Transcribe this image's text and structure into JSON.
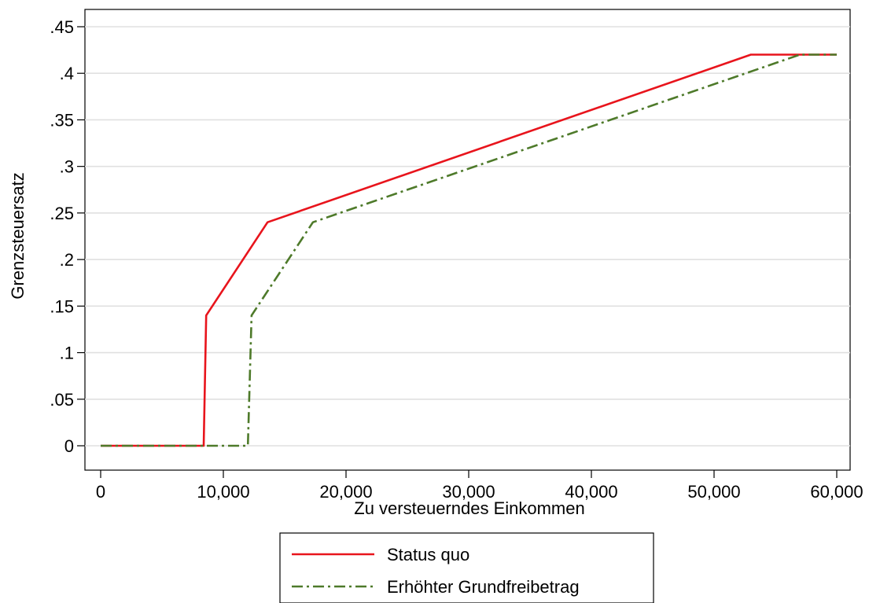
{
  "chart_data": {
    "type": "line",
    "title": "",
    "xlabel": "Zu versteuerndes Einkommen",
    "ylabel": "Grenzsteuersatz",
    "xlim": [
      0,
      60000
    ],
    "ylim": [
      0,
      0.45
    ],
    "x_ticks": [
      0,
      10000,
      20000,
      30000,
      40000,
      50000,
      60000
    ],
    "x_tick_labels": [
      "0",
      "10,000",
      "20,000",
      "30,000",
      "40,000",
      "50,000",
      "60,000"
    ],
    "y_ticks": [
      0,
      0.05,
      0.1,
      0.15,
      0.2,
      0.25,
      0.3,
      0.35,
      0.4,
      0.45
    ],
    "y_tick_labels": [
      "0",
      ".05",
      ".1",
      ".15",
      ".2",
      ".25",
      ".3",
      ".35",
      ".4",
      ".45"
    ],
    "grid": "horizontal",
    "legend_placement": "bottom",
    "series": [
      {
        "name": "Status quo",
        "color": "#e8141c",
        "style": "solid",
        "x": [
          0,
          8400,
          8600,
          13600,
          53000,
          60000
        ],
        "y": [
          0,
          0,
          0.14,
          0.24,
          0.42,
          0.42
        ]
      },
      {
        "name": "Erhöhter Grundfreibetrag",
        "color": "#4e7a2a",
        "style": "dash-dot",
        "x": [
          0,
          12000,
          12300,
          17300,
          57000,
          60000
        ],
        "y": [
          0,
          0,
          0.14,
          0.24,
          0.42,
          0.42
        ]
      }
    ]
  }
}
